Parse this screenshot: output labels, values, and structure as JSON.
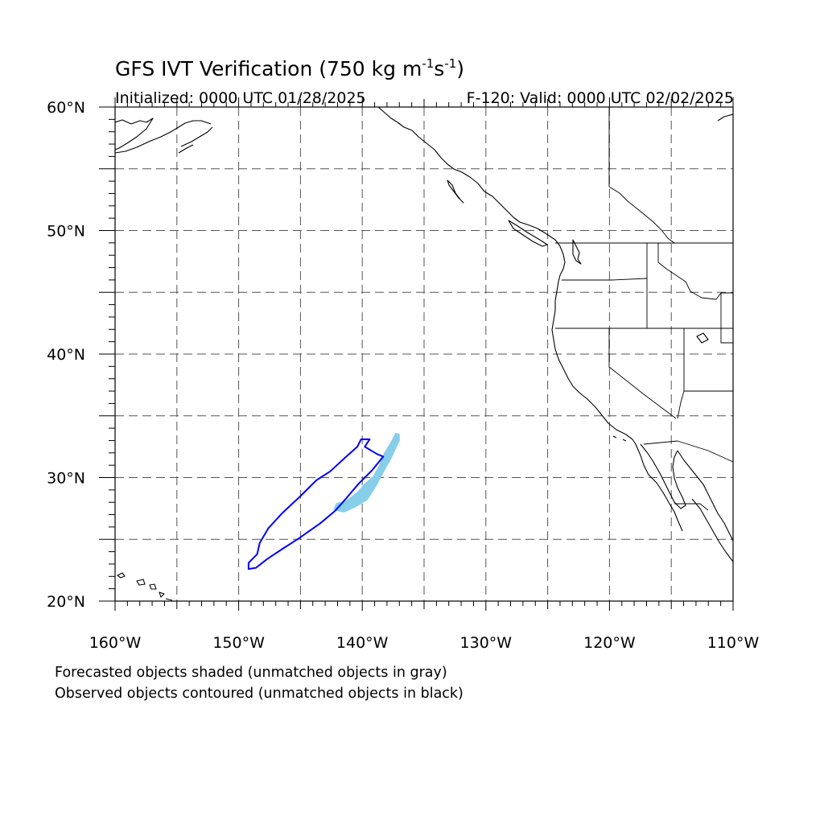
{
  "header": {
    "title_main": "GFS IVT Verification (750 kg m",
    "title_exp1": "-1",
    "title_mid": "s",
    "title_exp2": "-1",
    "title_end": ")",
    "init_text": "Initialized: 0000 UTC 01/28/2025",
    "valid_text": "F-120: Valid: 0000 UTC 02/02/2025"
  },
  "map": {
    "lon_range": [
      -160,
      -110
    ],
    "lat_range": [
      20,
      60
    ],
    "lon_labels": [
      {
        "lon": -160,
        "text": "160°W"
      },
      {
        "lon": -150,
        "text": "150°W"
      },
      {
        "lon": -140,
        "text": "140°W"
      },
      {
        "lon": -130,
        "text": "130°W"
      },
      {
        "lon": -120,
        "text": "120°W"
      },
      {
        "lon": -110,
        "text": "110°W"
      }
    ],
    "lat_labels": [
      {
        "lat": 60,
        "text": "60°N"
      },
      {
        "lat": 50,
        "text": "50°N"
      },
      {
        "lat": 40,
        "text": "40°N"
      },
      {
        "lat": 30,
        "text": "30°N"
      },
      {
        "lat": 20,
        "text": "20°N"
      }
    ],
    "grid": "dashed every 5 degrees",
    "colors": {
      "forecast_object": "#87ceeb",
      "observed_object": "#0000ff",
      "coastline": "#000000"
    },
    "forecast_object_lonlat": [
      [
        -142.3,
        27.4
      ],
      [
        -142.1,
        27.9
      ],
      [
        -141.3,
        28.1
      ],
      [
        -140.4,
        28.8
      ],
      [
        -139.8,
        29.5
      ],
      [
        -139.1,
        30.1
      ],
      [
        -138.6,
        31.0
      ],
      [
        -138.2,
        32.0
      ],
      [
        -137.6,
        33.0
      ],
      [
        -137.3,
        33.6
      ],
      [
        -137.0,
        33.5
      ],
      [
        -137.0,
        33.0
      ],
      [
        -137.7,
        31.5
      ],
      [
        -138.2,
        30.6
      ],
      [
        -138.9,
        29.3
      ],
      [
        -139.6,
        28.2
      ],
      [
        -140.6,
        27.6
      ],
      [
        -141.5,
        27.2
      ]
    ],
    "observed_object_lonlat": [
      [
        -149.2,
        22.6
      ],
      [
        -149.2,
        23.1
      ],
      [
        -148.5,
        23.8
      ],
      [
        -148.3,
        24.7
      ],
      [
        -147.6,
        25.9
      ],
      [
        -146.5,
        27.1
      ],
      [
        -145.0,
        28.5
      ],
      [
        -143.7,
        29.8
      ],
      [
        -142.6,
        30.5
      ],
      [
        -141.4,
        31.6
      ],
      [
        -140.4,
        32.5
      ],
      [
        -140.1,
        33.1
      ],
      [
        -139.4,
        33.1
      ],
      [
        -139.8,
        32.5
      ],
      [
        -138.8,
        31.9
      ],
      [
        -138.3,
        31.7
      ],
      [
        -139.2,
        30.6
      ],
      [
        -140.3,
        29.5
      ],
      [
        -141.4,
        28.2
      ],
      [
        -142.2,
        27.3
      ],
      [
        -143.4,
        26.3
      ],
      [
        -145.1,
        25.1
      ],
      [
        -146.5,
        24.2
      ],
      [
        -147.7,
        23.4
      ],
      [
        -148.6,
        22.7
      ]
    ]
  },
  "footer": {
    "line1": "Forecasted objects shaded (unmatched objects in gray)",
    "line2": "Observed objects contoured (unmatched objects in black)"
  }
}
